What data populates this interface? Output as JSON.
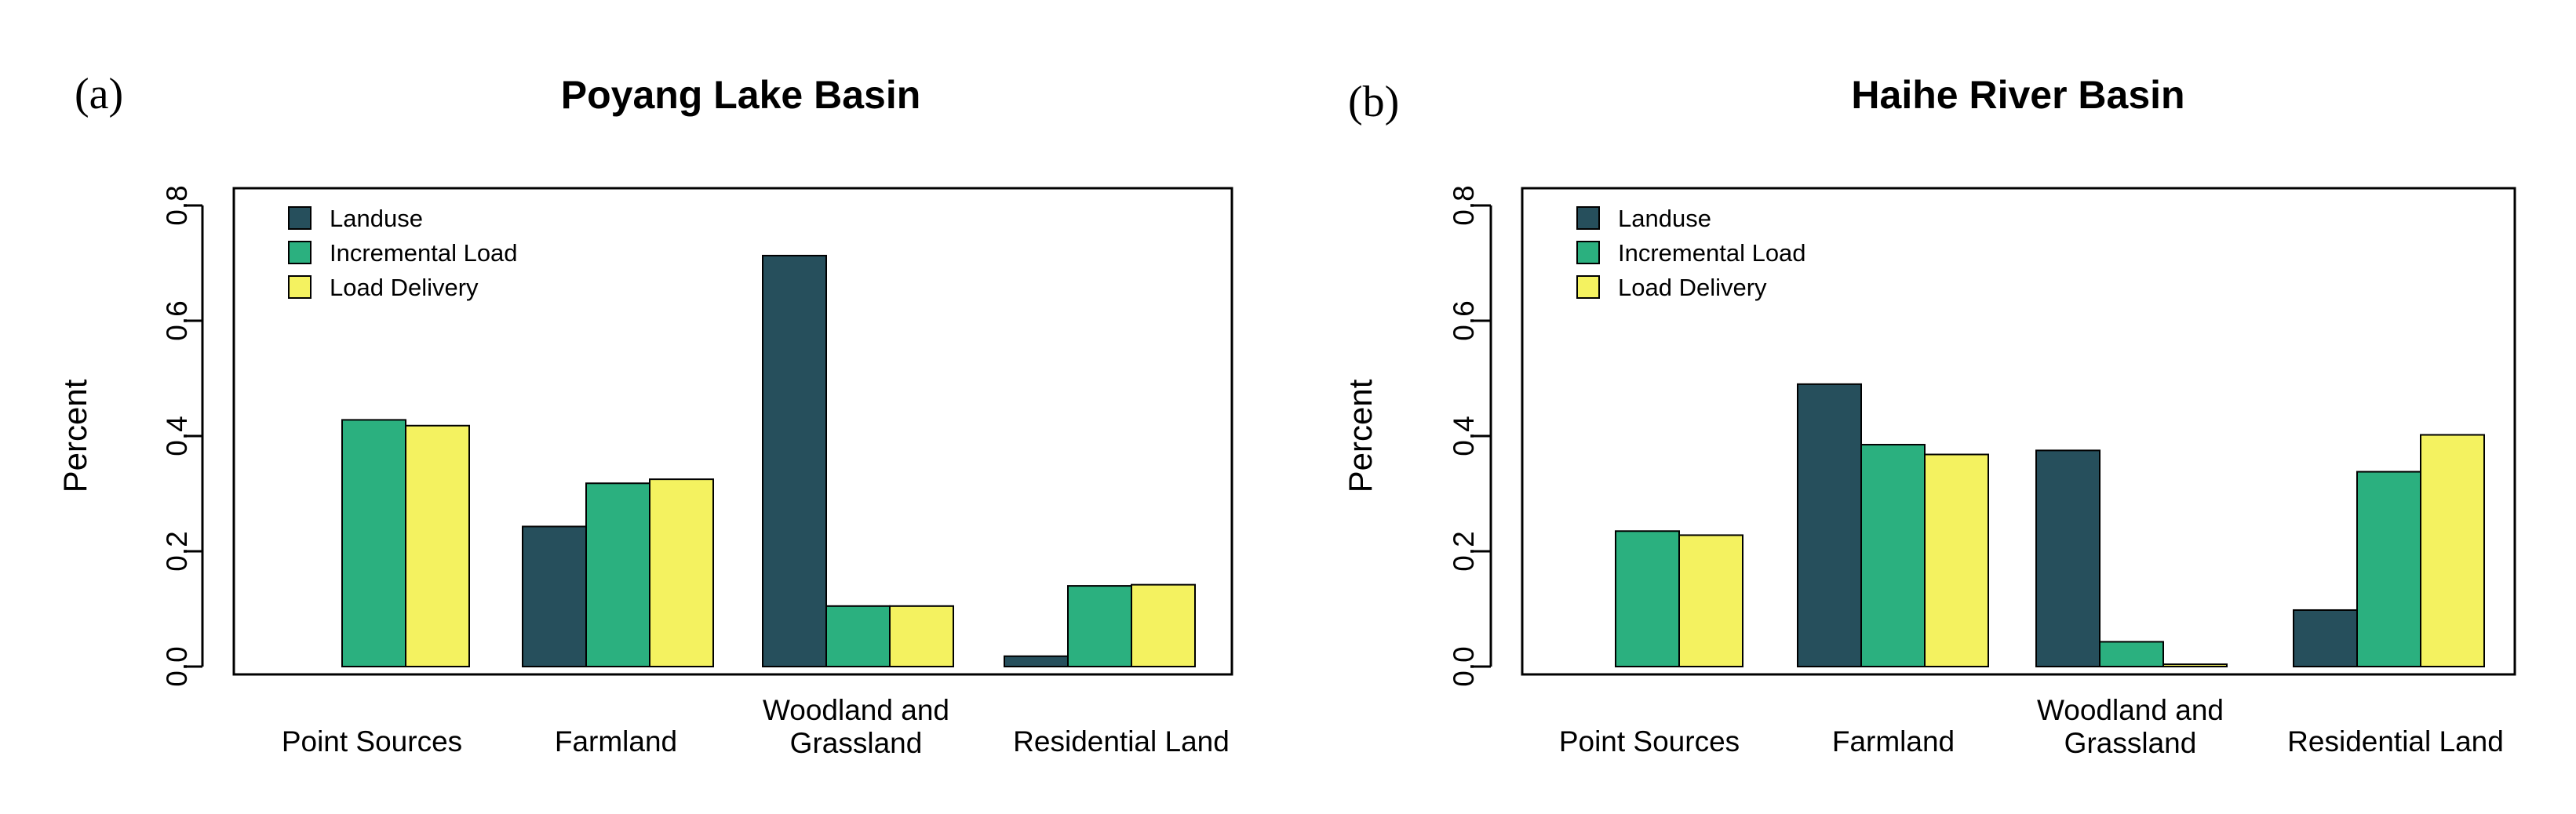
{
  "chart_data": [
    {
      "type": "bar",
      "panel_label": "(a)",
      "title": "Poyang Lake Basin",
      "xlabel": "",
      "ylabel": "Percent",
      "ylim": [
        0,
        0.8
      ],
      "yticks": [
        "0.0",
        "0.2",
        "0.4",
        "0.6",
        "0.8"
      ],
      "categories": [
        [
          "Point Sources"
        ],
        [
          "Farmland"
        ],
        [
          "Woodland and",
          "Grassland"
        ],
        [
          "Residential Land"
        ]
      ],
      "series": [
        {
          "name": "Landuse",
          "color": "#264f5c",
          "values": [
            0,
            0.243,
            0.713,
            0.018
          ]
        },
        {
          "name": "Incremental Load",
          "color": "#2bb07f",
          "values": [
            0.428,
            0.318,
            0.105,
            0.14
          ]
        },
        {
          "name": "Load Delivery",
          "color": "#f4f260",
          "values": [
            0.418,
            0.325,
            0.105,
            0.142
          ]
        }
      ],
      "legend_position": "top-left",
      "grid": false
    },
    {
      "type": "bar",
      "panel_label": "(b)",
      "title": "Haihe River Basin",
      "xlabel": "",
      "ylabel": "Percent",
      "ylim": [
        0,
        0.8
      ],
      "yticks": [
        "0.0",
        "0.2",
        "0.4",
        "0.6",
        "0.8"
      ],
      "categories": [
        [
          "Point Sources"
        ],
        [
          "Farmland"
        ],
        [
          "Woodland and",
          "Grassland"
        ],
        [
          "Residential Land"
        ]
      ],
      "series": [
        {
          "name": "Landuse",
          "color": "#264f5c",
          "values": [
            0,
            0.49,
            0.375,
            0.098
          ]
        },
        {
          "name": "Incremental Load",
          "color": "#2bb07f",
          "values": [
            0.235,
            0.385,
            0.043,
            0.338
          ]
        },
        {
          "name": "Load Delivery",
          "color": "#f4f260",
          "values": [
            0.228,
            0.368,
            0.004,
            0.402
          ]
        }
      ],
      "legend_position": "top-left",
      "grid": false
    }
  ]
}
